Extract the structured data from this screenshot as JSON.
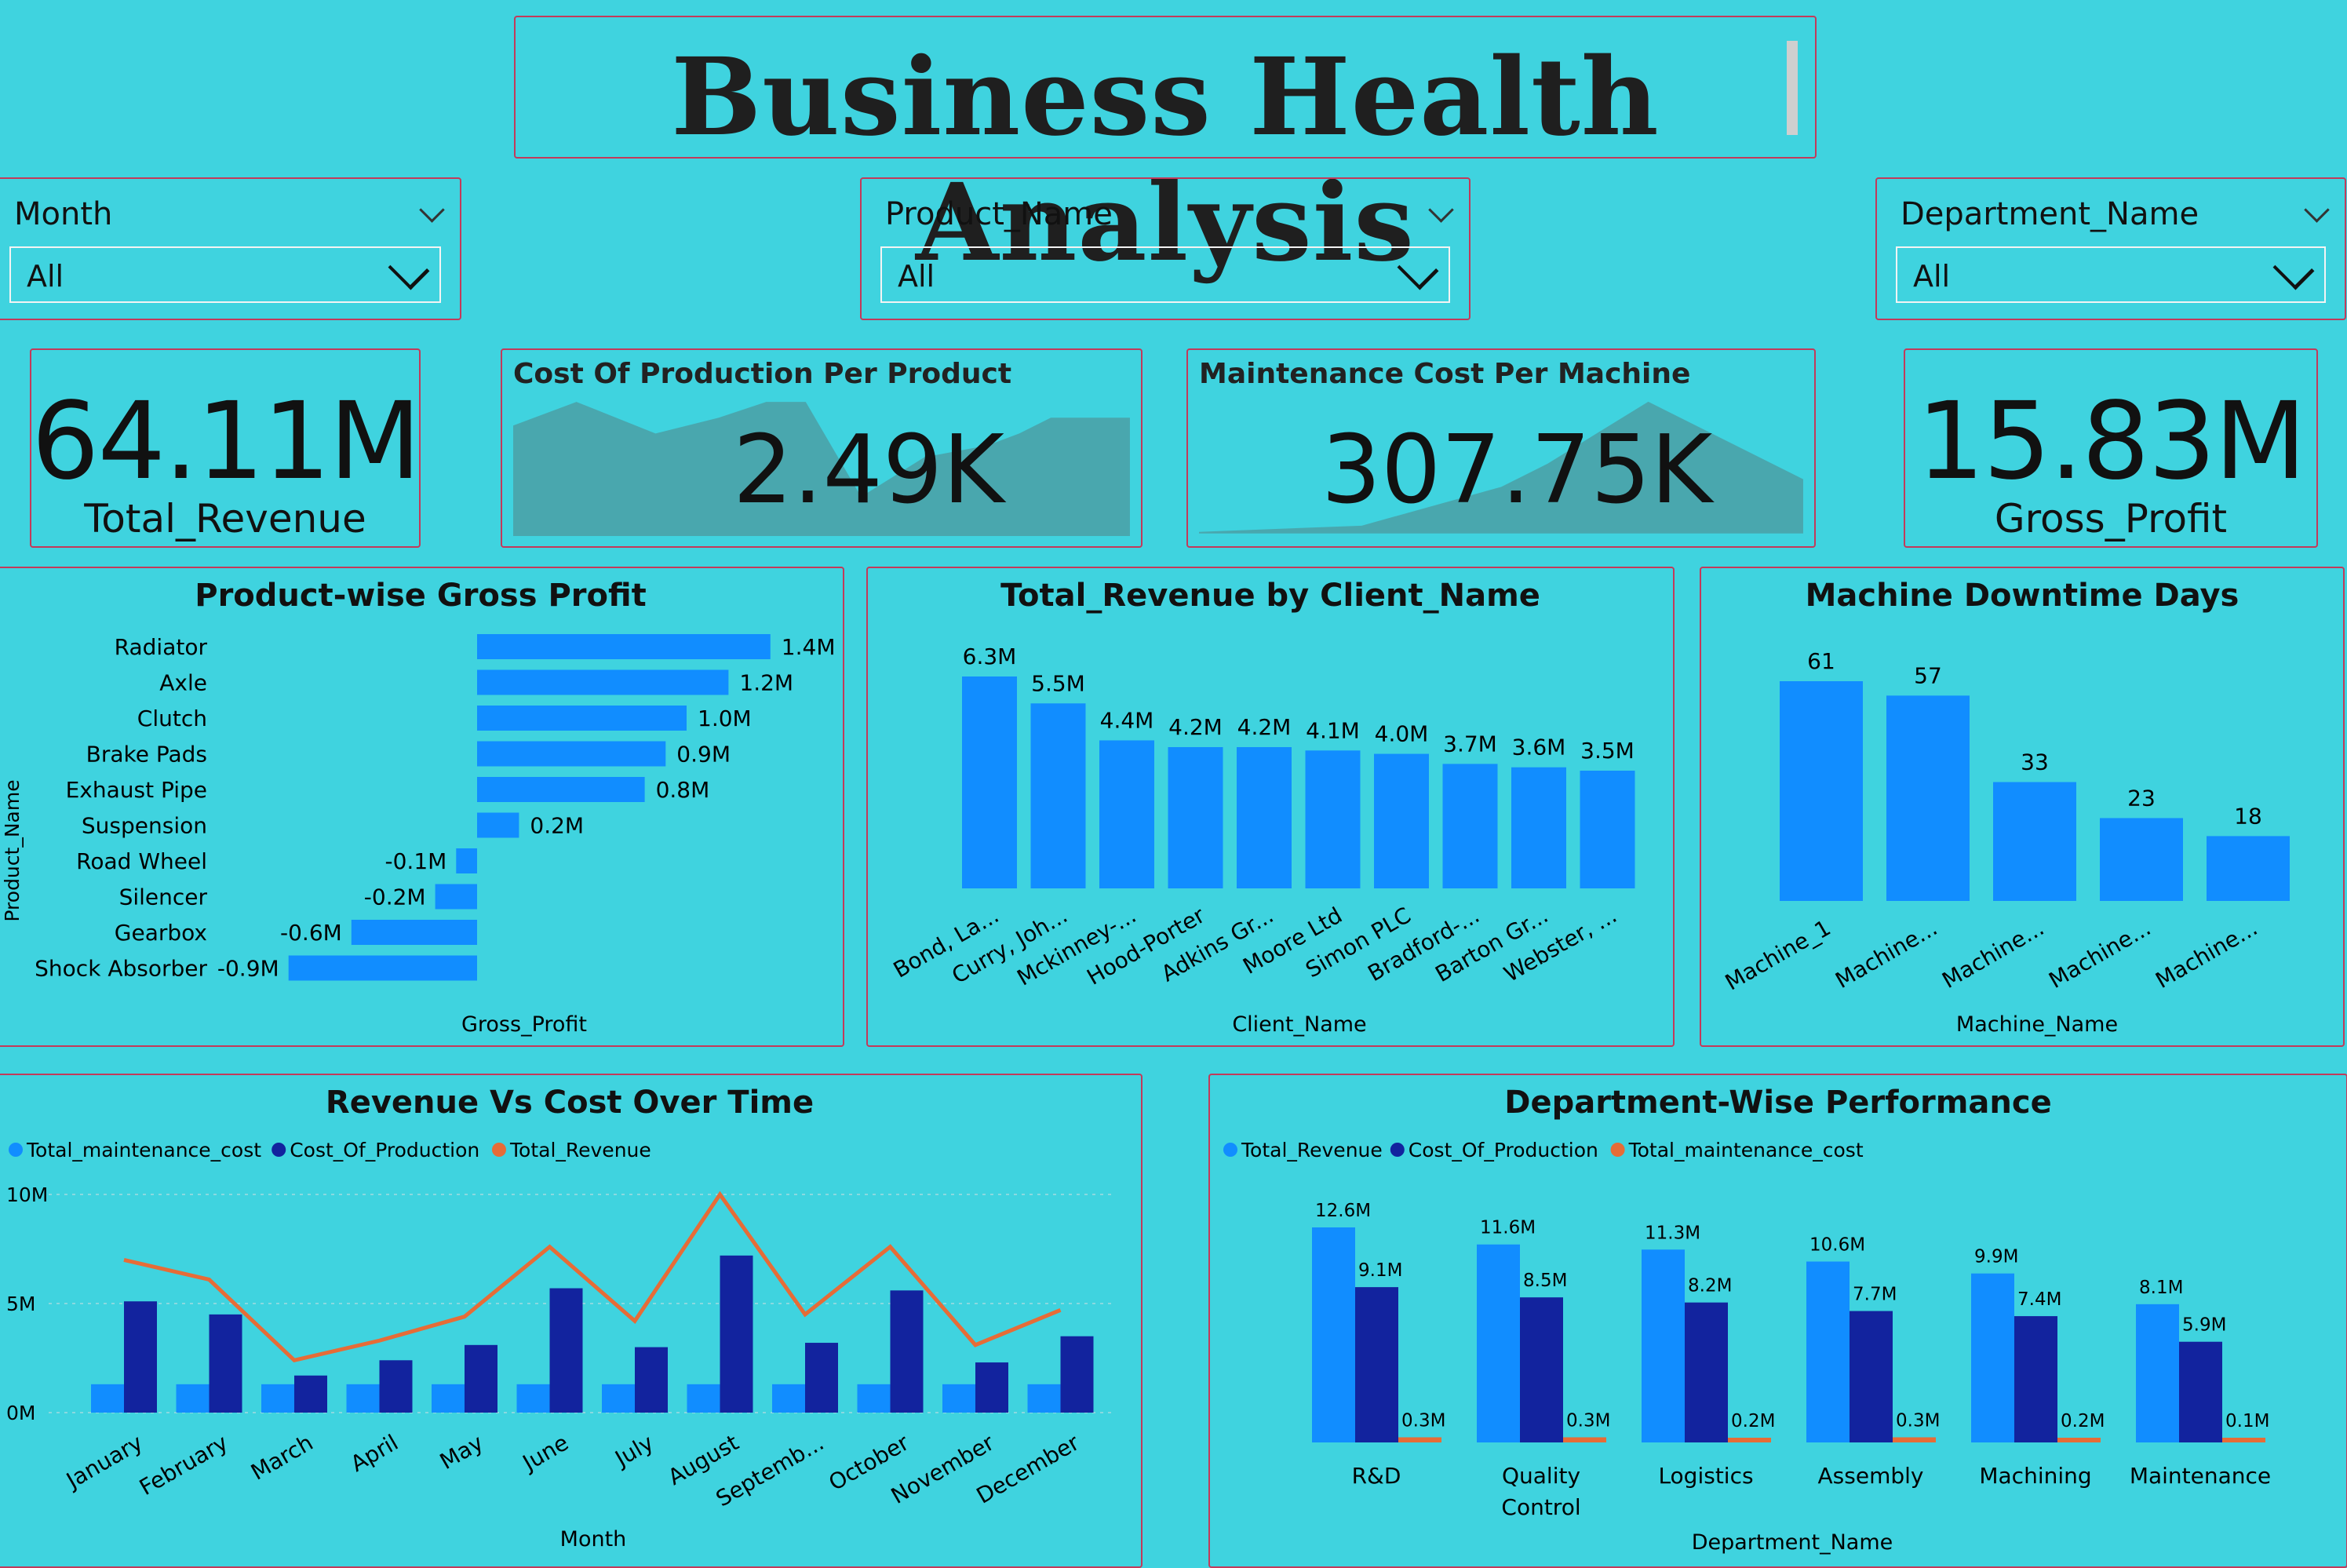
{
  "title": "Business Health Analysis",
  "filters": [
    {
      "label": "Month",
      "value": "All"
    },
    {
      "label": "Product_Name",
      "value": "All"
    },
    {
      "label": "Department_Name",
      "value": "All"
    }
  ],
  "kpis": {
    "total_revenue": {
      "value": "64.11M",
      "label": "Total_Revenue"
    },
    "cost_per_product": {
      "title": "Cost Of Production Per Product",
      "value": "2.49K"
    },
    "maint_per_machine": {
      "title": "Maintenance Cost Per Machine",
      "value": "307.75K"
    },
    "gross_profit": {
      "value": "15.83M",
      "label": "Gross_Profit"
    }
  },
  "colors": {
    "background": "#3fd3df",
    "border": "#c23a5a",
    "bar": "#118dff",
    "dark_bar": "#12239e",
    "line": "#e66c37"
  },
  "chart_data": [
    {
      "type": "bar",
      "orientation": "horizontal",
      "title": "Product-wise Gross Profit",
      "xlabel": "Gross_Profit",
      "ylabel": "Product_Name",
      "categories": [
        "Radiator",
        "Axle",
        "Clutch",
        "Brake Pads",
        "Exhaust Pipe",
        "Suspension",
        "Road Wheel",
        "Silencer",
        "Gearbox",
        "Shock Absorber"
      ],
      "values": [
        1.4,
        1.2,
        1.0,
        0.9,
        0.8,
        0.2,
        -0.1,
        -0.2,
        -0.6,
        -0.9
      ],
      "labels": [
        "1.4M",
        "1.2M",
        "1.0M",
        "0.9M",
        "0.8M",
        "0.2M",
        "-0.1M",
        "-0.2M",
        "-0.6M",
        "-0.9M"
      ]
    },
    {
      "type": "bar",
      "title": "Total_Revenue by Client_Name",
      "xlabel": "Client_Name",
      "categories": [
        "Bond, La...",
        "Curry, Joh...",
        "Mckinney-...",
        "Hood-Porter",
        "Adkins Gr...",
        "Moore Ltd",
        "Simon PLC",
        "Bradford-...",
        "Barton Gr...",
        "Webster, ..."
      ],
      "values": [
        6.3,
        5.5,
        4.4,
        4.2,
        4.2,
        4.1,
        4.0,
        3.7,
        3.6,
        3.5
      ],
      "labels": [
        "6.3M",
        "5.5M",
        "4.4M",
        "4.2M",
        "4.2M",
        "4.1M",
        "4.0M",
        "3.7M",
        "3.6M",
        "3.5M"
      ]
    },
    {
      "type": "bar",
      "title": "Machine Downtime Days",
      "xlabel": "Machine_Name",
      "categories": [
        "Machine_1",
        "Machine...",
        "Machine...",
        "Machine...",
        "Machine..."
      ],
      "values": [
        61,
        57,
        33,
        23,
        18
      ],
      "labels": [
        "61",
        "57",
        "33",
        "23",
        "18"
      ]
    },
    {
      "type": "bar",
      "title": "Revenue Vs Cost Over Time",
      "xlabel": "Month",
      "categories": [
        "January",
        "February",
        "March",
        "April",
        "May",
        "June",
        "July",
        "August",
        "Septemb...",
        "October",
        "November",
        "December"
      ],
      "series": [
        {
          "name": "Total_maintenance_cost",
          "kind": "bar",
          "values": [
            1.3,
            1.3,
            1.3,
            1.3,
            1.3,
            1.3,
            1.3,
            1.3,
            1.3,
            1.3,
            1.3,
            1.3
          ]
        },
        {
          "name": "Cost_Of_Production",
          "kind": "bar",
          "values": [
            5.1,
            4.5,
            1.7,
            2.4,
            3.1,
            5.7,
            3.0,
            7.2,
            3.2,
            5.6,
            2.3,
            3.5
          ]
        },
        {
          "name": "Total_Revenue",
          "kind": "line",
          "values": [
            7.0,
            6.1,
            2.4,
            3.3,
            4.4,
            7.6,
            4.2,
            10.0,
            4.5,
            7.6,
            3.1,
            4.7
          ]
        }
      ],
      "yticks": [
        "0M",
        "5M",
        "10M"
      ],
      "ylim": [
        0,
        10
      ]
    },
    {
      "type": "bar",
      "title": "Department-Wise Performance",
      "xlabel": "Department_Name",
      "categories": [
        "R&D",
        "Quality Control",
        "Logistics",
        "Assembly",
        "Machining",
        "Maintenance"
      ],
      "series": [
        {
          "name": "Total_Revenue",
          "values": [
            12.6,
            11.6,
            11.3,
            10.6,
            9.9,
            8.1
          ],
          "labels": [
            "12.6M",
            "11.6M",
            "11.3M",
            "10.6M",
            "9.9M",
            "8.1M"
          ]
        },
        {
          "name": "Cost_Of_Production",
          "values": [
            9.1,
            8.5,
            8.2,
            7.7,
            7.4,
            5.9
          ],
          "labels": [
            "9.1M",
            "8.5M",
            "8.2M",
            "7.7M",
            "7.4M",
            "5.9M"
          ]
        },
        {
          "name": "Total_maintenance_cost",
          "values": [
            0.3,
            0.3,
            0.2,
            0.3,
            0.2,
            0.1
          ],
          "labels": [
            "0.3M",
            "0.3M",
            "0.2M",
            "0.3M",
            "0.2M",
            "0.1M"
          ]
        }
      ]
    }
  ]
}
